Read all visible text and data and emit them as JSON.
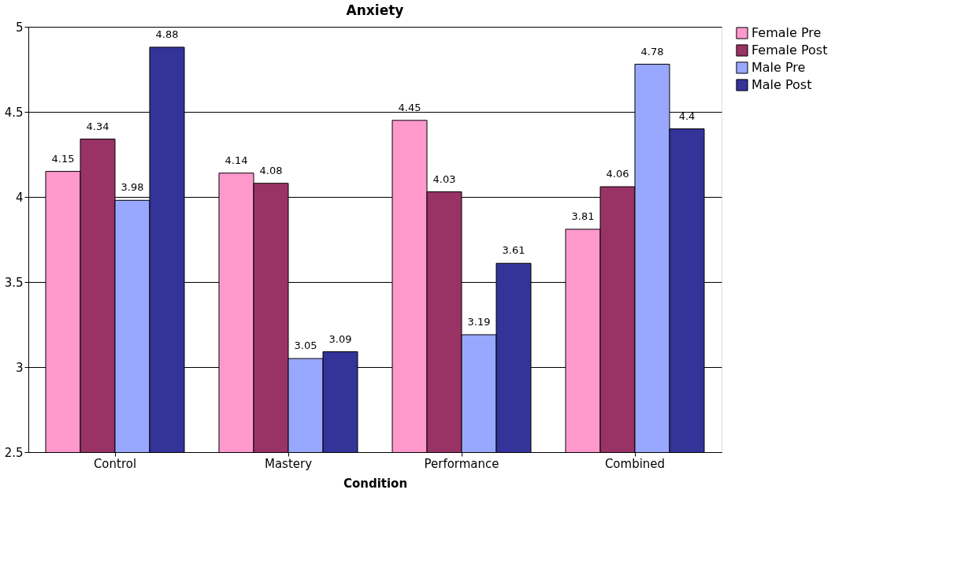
{
  "chart_data": {
    "type": "bar",
    "title": "Anxiety",
    "xlabel": "Condition",
    "categories": [
      "Control",
      "Mastery",
      "Performance",
      "Combined"
    ],
    "series": [
      {
        "name": "Female Pre",
        "color": "#ff99cc",
        "values": [
          4.15,
          4.14,
          4.45,
          3.81
        ]
      },
      {
        "name": "Female Post",
        "color": "#993366",
        "values": [
          4.34,
          4.08,
          4.03,
          4.06
        ]
      },
      {
        "name": "Male Pre",
        "color": "#99a8ff",
        "values": [
          3.98,
          3.05,
          3.19,
          4.78
        ]
      },
      {
        "name": "Male Post",
        "color": "#333399",
        "values": [
          4.88,
          3.09,
          3.61,
          4.4
        ]
      }
    ],
    "ylim": [
      2.5,
      5
    ],
    "yticks": [
      2.5,
      3,
      3.5,
      4,
      4.5,
      5
    ],
    "grid": "y",
    "legend": "right",
    "data_labels": true
  }
}
